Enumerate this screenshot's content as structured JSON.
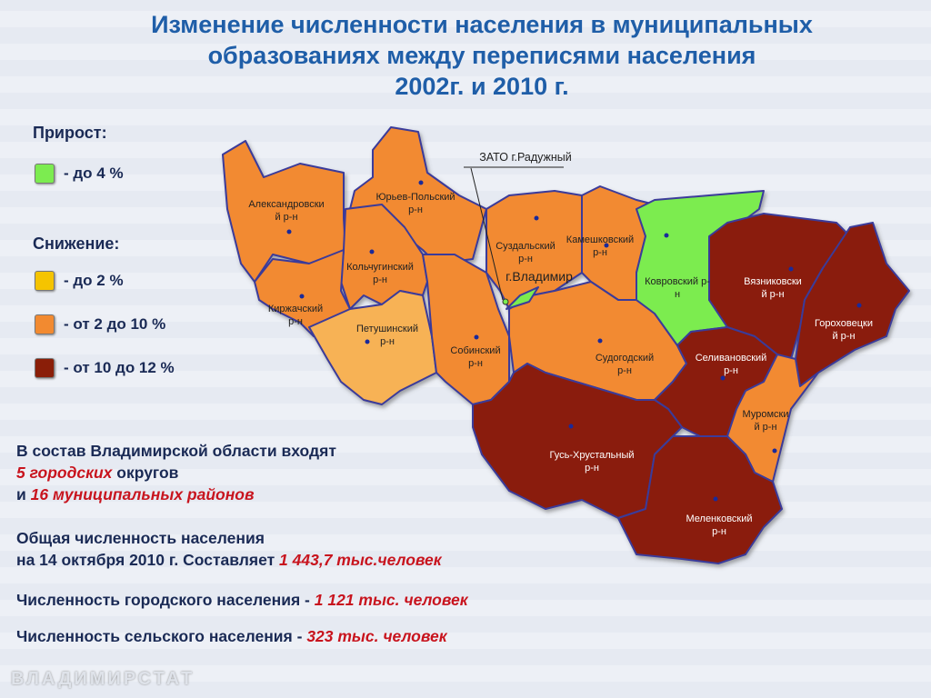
{
  "title": [
    "Изменение численности населения в муниципальных",
    "образованиях между переписями населения",
    "2002г. и 2010 г."
  ],
  "legend": {
    "growth_heading": "Прирост:",
    "decline_heading": "Снижение:",
    "items": [
      {
        "label": "- до 4 %",
        "color": "#7cec50"
      },
      {
        "label": "- до 2 %",
        "color": "#f5c400"
      },
      {
        "label": "- от 2 до 10 %",
        "color": "#f28a30"
      },
      {
        "label": "- от 10 до 12 %",
        "color": "#8a1e08"
      }
    ]
  },
  "map": {
    "zato_label": "ЗАТО г.Радужный",
    "city_label": "г.Владимир",
    "districts": [
      {
        "name": "Александровски\nй р-н",
        "category": "от 2 до 10 %"
      },
      {
        "name": "Юрьев-Польский\nр-н",
        "category": "от 2 до 10 %"
      },
      {
        "name": "Кольчугинский\nр-н",
        "category": "от 2 до 10 %"
      },
      {
        "name": "Киржачский\nр-н",
        "category": "от 2 до 10 %"
      },
      {
        "name": "Петушинский\nр-н",
        "category": "до 2 %"
      },
      {
        "name": "Собинский\nр-н",
        "category": "от 2 до 10 %"
      },
      {
        "name": "Суздальский\nр-н",
        "category": "от 2 до 10 %"
      },
      {
        "name": "Камешковский\nр-н",
        "category": "от 2 до 10 %"
      },
      {
        "name": "Ковровский р-\nн",
        "category": "до 4 %"
      },
      {
        "name": "Вязниковски\nй р-н",
        "category": "от 10 до 12 %"
      },
      {
        "name": "Гороховецки\nй р-н",
        "category": "от 10 до 12 %"
      },
      {
        "name": "Судогодский\nр-н",
        "category": "от 2 до 10 %"
      },
      {
        "name": "Селивановский\nр-н",
        "category": "от 10 до 12 %"
      },
      {
        "name": "Муромски\nй р-н",
        "category": "от 2 до 10 %"
      },
      {
        "name": "Гусь-Хрустальный\nр-н",
        "category": "от 10 до 12 %"
      },
      {
        "name": "Меленковский\nр-н",
        "category": "от 10 до 12 %"
      }
    ]
  },
  "info": {
    "line1": "В состав Владимирской области входят",
    "line2_red": "5 городских",
    "line2_rest": " округов",
    "line3_pre": "и ",
    "line3_red": "16 муниципальных районов",
    "line4": "Общая численность населения",
    "line5": "на 14 октября 2010 г. Составляет ",
    "line5_red": "1 443,7 тыс.человек",
    "urban_label": "Численность городского населения - ",
    "urban_value": "1 121 тыс. человек",
    "rural_label": "Численность сельского населения - ",
    "rural_value": "323 тыс. человек"
  },
  "footer": "ВЛАДИМИРСТАТ"
}
